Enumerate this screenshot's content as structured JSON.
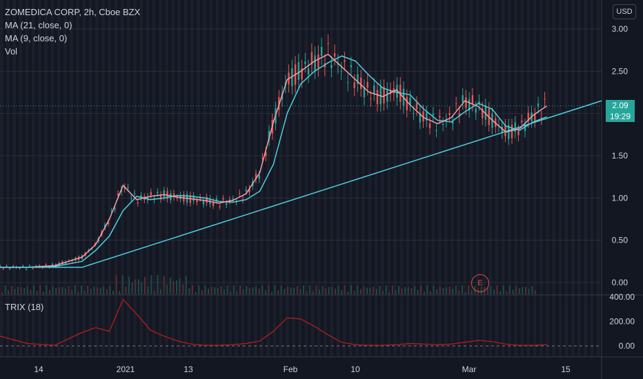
{
  "legend": {
    "title": "ZOMEDICA CORP, 2h, Cboe BZX",
    "ma21": "MA (21, close, 0)",
    "ma9": "MA (9, close, 0)",
    "vol": "Vol",
    "trix": "TRIX (18)"
  },
  "currency": "USD",
  "last_price": "2.09",
  "countdown": "19:29",
  "earnings_marker": "E",
  "colors": {
    "background": "#131722",
    "up": "#26a69a",
    "down": "#ef5350",
    "ma21": "#4dd0e1",
    "ma9": "#f4a0a8",
    "trendline": "#4dd0e1",
    "trix": "#b71c1c",
    "text": "#d1d4dc"
  },
  "chart_data": [
    {
      "type": "line",
      "title": "ZOMEDICA CORP, 2h, Cboe BZX",
      "x_tick_labels": [
        "14",
        "2021",
        "13",
        "Feb",
        "10",
        "Mar",
        "15"
      ],
      "y_tick_labels": [
        "3.00",
        "2.50",
        "2.00",
        "1.50",
        "1.00",
        "0.50",
        "0.00"
      ],
      "ylim": [
        0,
        3.0
      ],
      "series": [
        {
          "name": "MA (21, close, 0)",
          "x": [
            0,
            10,
            20,
            30,
            35,
            40,
            45,
            50,
            55,
            60,
            65,
            70,
            75,
            80,
            85,
            90,
            95,
            100,
            105,
            110,
            115,
            120,
            125,
            130,
            135,
            140,
            145,
            150,
            155,
            160,
            165,
            170,
            175,
            180,
            185,
            190,
            195,
            200
          ],
          "y": [
            0.18,
            0.18,
            0.19,
            0.25,
            0.38,
            0.55,
            0.85,
            1.02,
            0.98,
            1.0,
            1.03,
            1.02,
            1.0,
            0.96,
            0.95,
            0.98,
            1.08,
            1.4,
            2.0,
            2.35,
            2.5,
            2.6,
            2.68,
            2.62,
            2.45,
            2.3,
            2.25,
            2.22,
            2.05,
            1.92,
            1.9,
            2.02,
            2.12,
            2.05,
            1.85,
            1.8,
            1.9,
            1.96
          ]
        },
        {
          "name": "MA (9, close, 0)",
          "x": [
            0,
            10,
            20,
            30,
            35,
            40,
            45,
            50,
            55,
            60,
            65,
            70,
            75,
            80,
            85,
            90,
            95,
            100,
            105,
            110,
            115,
            120,
            125,
            130,
            135,
            140,
            145,
            150,
            155,
            160,
            165,
            170,
            175,
            180,
            185,
            190,
            195,
            200
          ],
          "y": [
            0.18,
            0.18,
            0.2,
            0.3,
            0.45,
            0.75,
            1.15,
            0.98,
            1.02,
            1.04,
            1.01,
            0.99,
            0.97,
            0.94,
            0.97,
            1.05,
            1.3,
            1.9,
            2.4,
            2.5,
            2.62,
            2.7,
            2.55,
            2.4,
            2.25,
            2.2,
            2.28,
            2.1,
            1.95,
            1.88,
            1.95,
            2.15,
            2.08,
            1.92,
            1.78,
            1.82,
            1.98,
            2.09
          ]
        },
        {
          "name": "TRIX (18)",
          "x": [
            0,
            10,
            20,
            30,
            35,
            40,
            45,
            50,
            55,
            60,
            65,
            70,
            75,
            80,
            85,
            90,
            95,
            100,
            105,
            110,
            115,
            120,
            125,
            130,
            135,
            140,
            145,
            150,
            155,
            160,
            165,
            170,
            175,
            180,
            185,
            190,
            195,
            200
          ],
          "y": [
            80,
            20,
            5,
            110,
            150,
            120,
            380,
            260,
            130,
            80,
            40,
            15,
            5,
            5,
            10,
            20,
            40,
            120,
            230,
            220,
            160,
            90,
            30,
            10,
            5,
            5,
            10,
            20,
            15,
            10,
            15,
            30,
            45,
            35,
            15,
            5,
            5,
            10
          ]
        }
      ],
      "trendline": {
        "x": [
          30,
          220
        ],
        "y": [
          0.18,
          2.15
        ]
      },
      "trix_y_tick_labels": [
        "400.00",
        "200.00",
        "0.00"
      ],
      "trix_ylim": [
        -60,
        420
      ],
      "grid": true,
      "legend_position": "top-left"
    }
  ]
}
